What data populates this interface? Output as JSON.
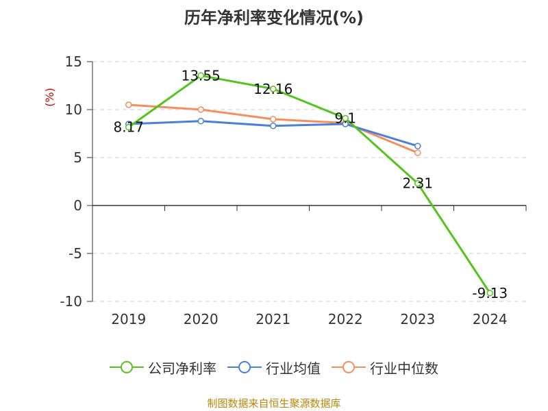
{
  "chart_data": {
    "type": "line",
    "title": "历年净利率变化情况(%)",
    "ylabel": "(%)",
    "xlabel": "",
    "categories": [
      "2019",
      "2020",
      "2021",
      "2022",
      "2023",
      "2024"
    ],
    "ylim": [
      -10,
      15
    ],
    "yticks": [
      15,
      10,
      5,
      0,
      -5,
      -10
    ],
    "grid": true,
    "legend_position": "bottom",
    "series": [
      {
        "name": "公司净利率",
        "color": "#52c41a",
        "values": [
          8.17,
          13.55,
          12.16,
          9.1,
          2.31,
          -9.13
        ],
        "labels": [
          "8.17",
          "13.55",
          "12.16",
          "9.1",
          "2.31",
          "-9.13"
        ]
      },
      {
        "name": "行业均值",
        "color": "#4a7fdc",
        "values": [
          8.5,
          8.8,
          8.3,
          8.5,
          6.2,
          null
        ]
      },
      {
        "name": "行业中位数",
        "color": "#f58d5d",
        "values": [
          10.5,
          10.0,
          9.0,
          8.6,
          5.5,
          null
        ]
      }
    ]
  },
  "source_text": "制图数据来自恒生聚源数据库",
  "y_unit_color": "#cc0000"
}
